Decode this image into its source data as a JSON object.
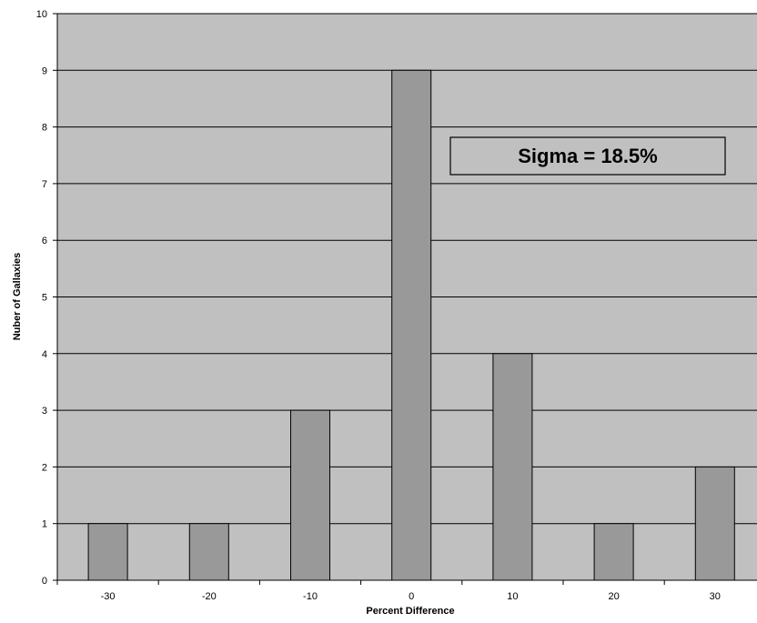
{
  "chart_data": {
    "type": "bar",
    "categories": [
      "-30",
      "-20",
      "-10",
      "0",
      "10",
      "20",
      "30"
    ],
    "values": [
      1,
      1,
      3,
      9,
      4,
      1,
      2
    ],
    "title": "",
    "xlabel": "Percent Difference",
    "ylabel": "Nuber of Gallaxies",
    "ylim": [
      0,
      10
    ],
    "yticks": [
      "0",
      "1",
      "2",
      "3",
      "4",
      "5",
      "6",
      "7",
      "8",
      "9",
      "10"
    ],
    "grid": true,
    "legend": "none",
    "annotation": "Sigma = 18.5%",
    "colors": {
      "plot_background": "#c0c0c0",
      "bar_fill": "#999999",
      "bar_edge": "#000000",
      "gridline": "#000000",
      "annotation_box": "#ffffff"
    }
  }
}
